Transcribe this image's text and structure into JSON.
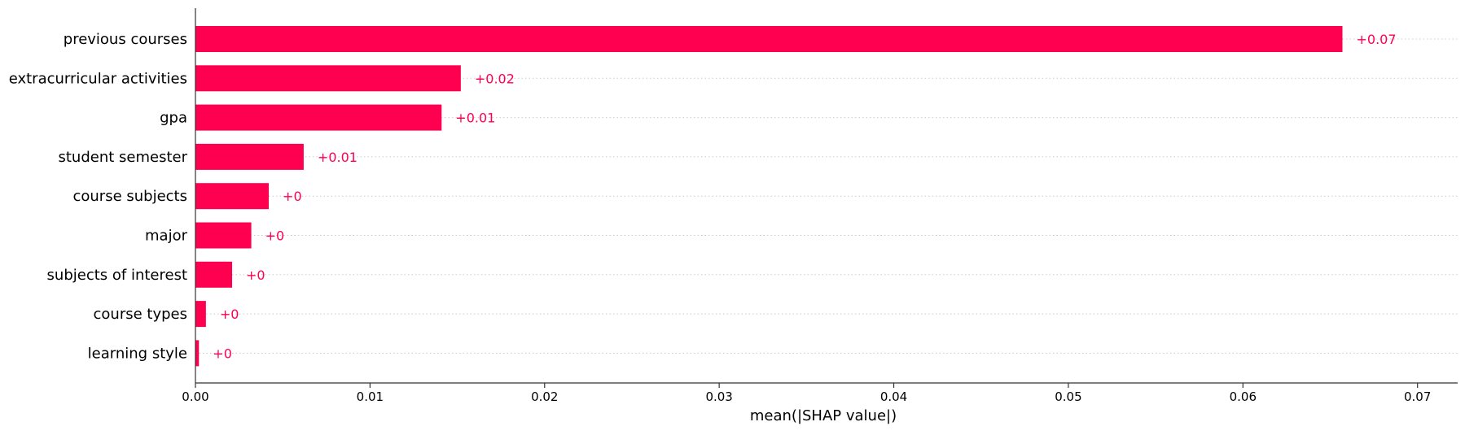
{
  "chart_data": {
    "type": "bar",
    "orientation": "horizontal",
    "title": "",
    "xlabel": "mean(|SHAP value|)",
    "ylabel": "",
    "xlim": [
      0,
      0.0723
    ],
    "xticks": [
      0.0,
      0.01,
      0.02,
      0.03,
      0.04,
      0.05,
      0.06,
      0.07
    ],
    "xtick_labels": [
      "0.00",
      "0.01",
      "0.02",
      "0.03",
      "0.04",
      "0.05",
      "0.06",
      "0.07"
    ],
    "grid": "dotted horizontal guide lines per feature",
    "bar_color": "#ff0051",
    "categories": [
      "previous courses",
      "extracurricular activities",
      "gpa",
      "student semester",
      "course subjects",
      "major",
      "subjects of interest",
      "course types",
      "learning style"
    ],
    "values": [
      0.0657,
      0.0152,
      0.0141,
      0.0062,
      0.0042,
      0.0032,
      0.0021,
      0.0006,
      0.0002
    ],
    "value_labels": [
      "+0.07",
      "+0.02",
      "+0.01",
      "+0.01",
      "+0",
      "+0",
      "+0",
      "+0",
      "+0"
    ]
  }
}
